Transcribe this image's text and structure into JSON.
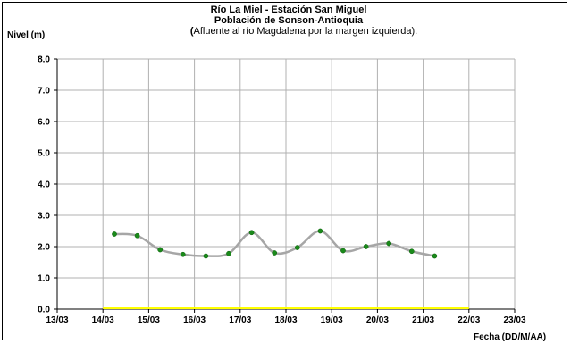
{
  "chart_data": {
    "type": "line",
    "title_line1": "Río La Miel  - Estación San Miguel",
    "title_line2": "Población de Sonson-Antioquia",
    "subtitle_bold": "(",
    "subtitle_rest": "Afluente al río Magdalena por la margen izquierda).",
    "ylabel": "Nivel (m)",
    "xlabel": "Fecha (DD/M/AA)",
    "ylim": [
      0,
      8
    ],
    "yticks": [
      "0.0",
      "1.0",
      "2.0",
      "3.0",
      "4.0",
      "5.0",
      "6.0",
      "7.0",
      "8.0"
    ],
    "xlim": [
      0,
      10
    ],
    "xticks": [
      "13/03",
      "14/03",
      "15/03",
      "16/03",
      "17/03",
      "18/03",
      "19/03",
      "20/03",
      "21/03",
      "22/03",
      "23/03"
    ],
    "grid": true,
    "series": [
      {
        "x": [
          1.25,
          1.75,
          2.25,
          2.75,
          3.25,
          3.75,
          4.25,
          4.75,
          5.25,
          5.75,
          6.25,
          6.75,
          7.25,
          7.75,
          8.25
        ],
        "values": [
          2.4,
          2.35,
          1.9,
          1.75,
          1.7,
          1.78,
          2.45,
          1.8,
          1.97,
          2.5,
          1.87,
          2.0,
          2.1,
          1.85,
          1.7
        ],
        "line_color": "#a6a6a6",
        "marker_color": "#1a8a1a"
      }
    ],
    "baseline": {
      "x_start": 1.0,
      "x_end": 9.0,
      "value": 0,
      "color": "#ffff00"
    }
  }
}
